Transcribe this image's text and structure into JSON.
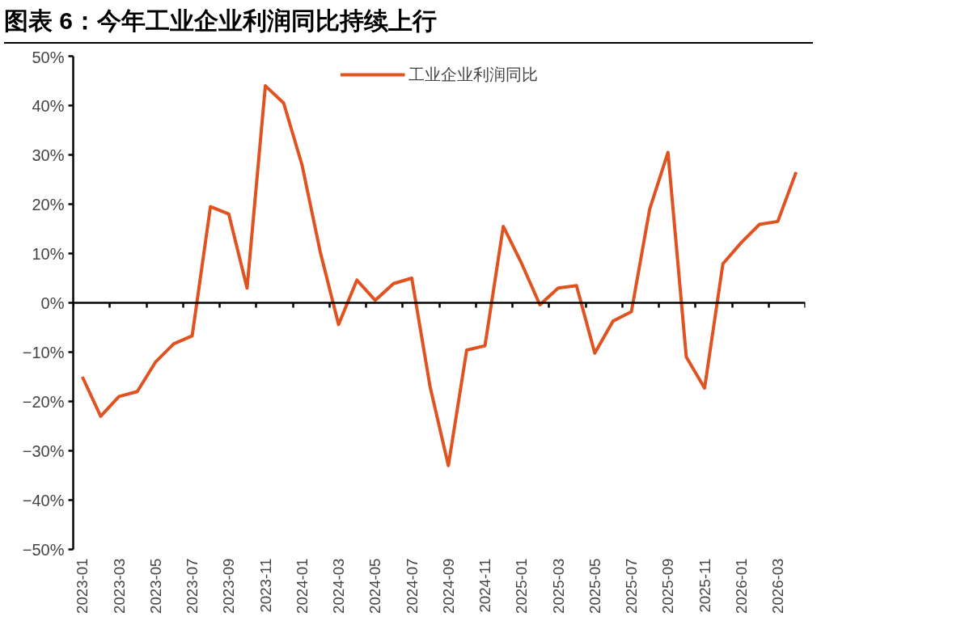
{
  "chart_data": {
    "type": "line",
    "title": "图表 6：今年工业企业利润同比持续上行",
    "categories": [
      "2023-01",
      null,
      "2023-03",
      null,
      "2023-05",
      null,
      "2023-07",
      null,
      "2023-09",
      null,
      "2023-11",
      null,
      "2024-01",
      null,
      "2024-03",
      null,
      "2024-05",
      null,
      "2024-07",
      null,
      "2024-09",
      null,
      "2024-11",
      null,
      "2025-01",
      null,
      "2025-03",
      null,
      "2025-05",
      null,
      "2025-07",
      null,
      "2025-09",
      null,
      "2025-11",
      null,
      "2026-01",
      null,
      "2026-03",
      null
    ],
    "series": [
      {
        "name": "工业企业利润同比",
        "color": "#e0521f",
        "values": [
          -15,
          -23,
          -19,
          -18,
          -12,
          -8.3,
          -6.7,
          19.5,
          18,
          3,
          44,
          40.5,
          28,
          10.3,
          -4.4,
          4.6,
          0.5,
          3.9,
          5,
          -17,
          -33,
          -9.6,
          -8.7,
          15.5,
          8,
          -0.4,
          3,
          3.5,
          -10.2,
          -3.7,
          -1.8,
          19,
          30.5,
          -11,
          -17.3,
          7.9,
          12.2,
          15.9,
          16.5,
          26.5
        ]
      }
    ],
    "ylim": [
      -50,
      50
    ],
    "yticks": [
      {
        "value": -50,
        "label": "−50%"
      },
      {
        "value": -40,
        "label": "−40%"
      },
      {
        "value": -30,
        "label": "−30%"
      },
      {
        "value": -20,
        "label": "−20%"
      },
      {
        "value": -10,
        "label": "−10%"
      },
      {
        "value": 0,
        "label": "0%"
      },
      {
        "value": 10,
        "label": "10%"
      },
      {
        "value": 20,
        "label": "20%"
      },
      {
        "value": 30,
        "label": "30%"
      },
      {
        "value": 40,
        "label": "40%"
      },
      {
        "value": 50,
        "label": "50%"
      }
    ],
    "legend": "top",
    "marker": "none",
    "line_style": "solid"
  }
}
